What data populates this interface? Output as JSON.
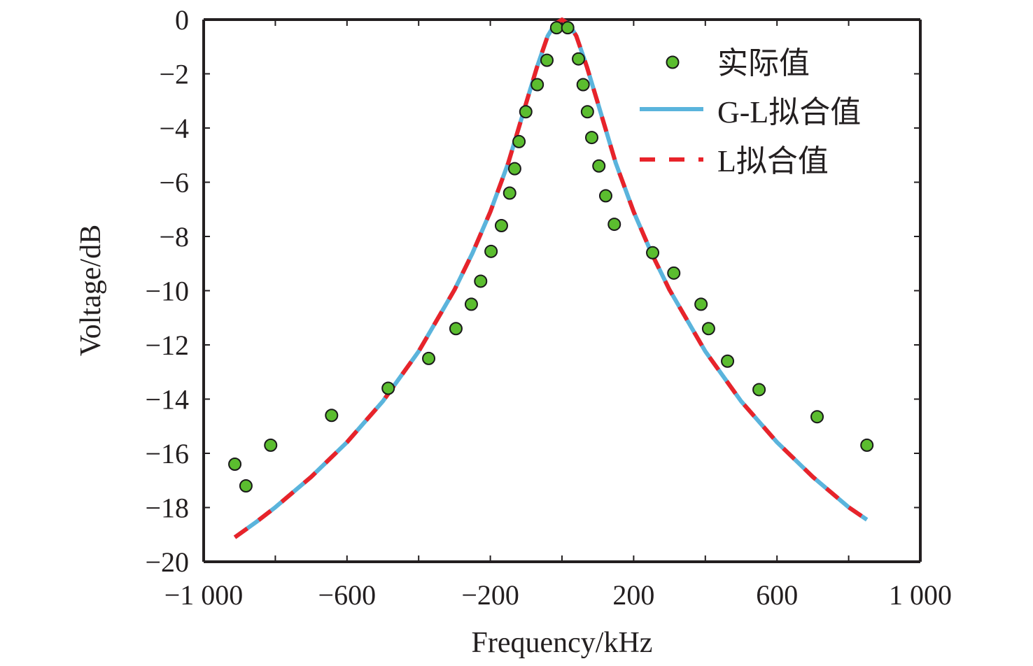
{
  "chart_data": {
    "type": "scatter",
    "title": "",
    "xlabel": "Frequency/kHz",
    "ylabel": "Voltage/dB",
    "xlim": [
      -1000,
      1000
    ],
    "ylim": [
      -20,
      0
    ],
    "grid": false,
    "legend_position": "top-right",
    "x_ticks": [
      -1000,
      -800,
      -600,
      -400,
      -200,
      0,
      200,
      400,
      600,
      800,
      1000
    ],
    "x_tick_labels": [
      {
        "value": -1000,
        "label": "−1 000"
      },
      {
        "value": -600,
        "label": "−600"
      },
      {
        "value": -200,
        "label": "−200"
      },
      {
        "value": 200,
        "label": "200"
      },
      {
        "value": 600,
        "label": "600"
      },
      {
        "value": 1000,
        "label": "1 000"
      }
    ],
    "y_ticks": [
      0,
      -2,
      -4,
      -6,
      -8,
      -10,
      -12,
      -14,
      -16,
      -18,
      -20
    ],
    "y_tick_labels": [
      {
        "value": 0,
        "label": "0"
      },
      {
        "value": -2,
        "label": "−2"
      },
      {
        "value": -4,
        "label": "−4"
      },
      {
        "value": -6,
        "label": "−6"
      },
      {
        "value": -8,
        "label": "−8"
      },
      {
        "value": -10,
        "label": "−10"
      },
      {
        "value": -12,
        "label": "−12"
      },
      {
        "value": -14,
        "label": "−14"
      },
      {
        "value": -16,
        "label": "−16"
      },
      {
        "value": -18,
        "label": "−18"
      },
      {
        "value": -20,
        "label": "−20"
      }
    ],
    "series": [
      {
        "name": "实际值",
        "kind": "scatter",
        "color": "#5bbd2f",
        "edge_color": "#1a1a1a",
        "x": [
          -913,
          -882,
          -813,
          -643,
          -485,
          -372,
          -296,
          -253,
          -227,
          -198,
          -169,
          -146,
          -132,
          -120,
          -101,
          -69,
          -42,
          -15,
          16,
          46,
          59,
          71,
          83,
          103,
          122,
          146,
          253,
          312,
          388,
          409,
          462,
          550,
          712,
          851
        ],
        "y": [
          -16.4,
          -17.2,
          -15.7,
          -14.6,
          -13.6,
          -12.5,
          -11.4,
          -10.5,
          -9.65,
          -8.55,
          -7.6,
          -6.4,
          -5.5,
          -4.5,
          -3.4,
          -2.4,
          -1.5,
          -0.3,
          -0.3,
          -1.45,
          -2.4,
          -3.4,
          -4.35,
          -5.4,
          -6.5,
          -7.55,
          -8.6,
          -9.35,
          -10.5,
          -11.4,
          -12.6,
          -13.65,
          -14.65,
          -15.7
        ]
      },
      {
        "name": "G-L拟合值",
        "kind": "line",
        "color": "#5ab4dc",
        "style": "solid",
        "x": [
          -913,
          -850,
          -800,
          -700,
          -600,
          -500,
          -400,
          -300,
          -250,
          -200,
          -150,
          -100,
          -70,
          -40,
          -20,
          0,
          20,
          40,
          70,
          100,
          150,
          200,
          250,
          300,
          400,
          500,
          600,
          700,
          800,
          851
        ],
        "y": [
          -19.1,
          -18.5,
          -17.99,
          -16.87,
          -15.59,
          -14.08,
          -12.24,
          -9.97,
          -8.62,
          -7.09,
          -5.29,
          -3.08,
          -1.76,
          -0.61,
          -0.17,
          0.0,
          -0.17,
          -0.61,
          -1.76,
          -3.08,
          -5.29,
          -7.09,
          -8.62,
          -9.97,
          -12.24,
          -14.08,
          -15.59,
          -16.87,
          -17.99,
          -18.45
        ]
      },
      {
        "name": "L拟合值",
        "kind": "line",
        "color": "#e8232a",
        "style": "dashed",
        "x": [
          -913,
          -850,
          -800,
          -700,
          -600,
          -500,
          -400,
          -300,
          -250,
          -200,
          -150,
          -100,
          -70,
          -40,
          -20,
          0,
          20,
          40,
          70,
          100,
          150,
          200,
          250,
          300,
          400,
          500,
          600,
          700,
          800,
          851
        ],
        "y": [
          -19.1,
          -18.5,
          -17.99,
          -16.87,
          -15.59,
          -14.08,
          -12.24,
          -9.97,
          -8.62,
          -7.09,
          -5.29,
          -3.08,
          -1.76,
          -0.61,
          -0.17,
          0.0,
          -0.17,
          -0.61,
          -1.76,
          -3.08,
          -5.29,
          -7.09,
          -8.62,
          -9.97,
          -12.24,
          -14.08,
          -15.59,
          -16.87,
          -17.99,
          -18.45
        ]
      }
    ],
    "legend": [
      {
        "label": "实际值",
        "marker": "circle"
      },
      {
        "label": "G-L拟合值",
        "marker": "solid-line"
      },
      {
        "label": "L拟合值",
        "marker": "dashed-line"
      }
    ]
  }
}
